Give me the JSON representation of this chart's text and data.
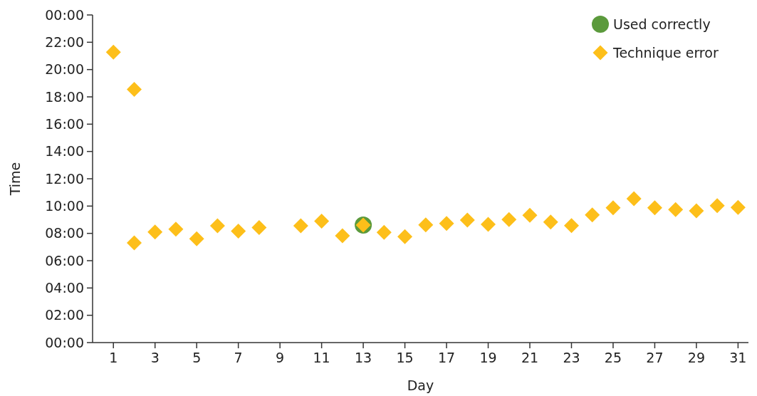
{
  "chart_data": {
    "type": "scatter",
    "xlabel": "Day",
    "ylabel": "Time",
    "xlim": [
      0,
      31.5
    ],
    "xticks": [
      1,
      3,
      5,
      7,
      9,
      11,
      13,
      15,
      17,
      19,
      21,
      23,
      25,
      27,
      29,
      31
    ],
    "ylim": [
      0,
      24
    ],
    "yticks": [
      {
        "value": 0,
        "label": "00:00"
      },
      {
        "value": 2,
        "label": "02:00"
      },
      {
        "value": 4,
        "label": "04:00"
      },
      {
        "value": 6,
        "label": "06:00"
      },
      {
        "value": 8,
        "label": "08:00"
      },
      {
        "value": 10,
        "label": "10:00"
      },
      {
        "value": 12,
        "label": "12:00"
      },
      {
        "value": 14,
        "label": "14:00"
      },
      {
        "value": 16,
        "label": "16:00"
      },
      {
        "value": 18,
        "label": "18:00"
      },
      {
        "value": 20,
        "label": "20:00"
      },
      {
        "value": 22,
        "label": "22:00"
      },
      {
        "value": 24,
        "label": "00:00"
      }
    ],
    "grid": false,
    "legend": "top right",
    "series": [
      {
        "name": "Used correctly",
        "color": "#5b9a3c",
        "marker": "circle",
        "x": [
          13
        ],
        "values": [
          8.61
        ]
      },
      {
        "name": "Technique error",
        "color": "#fdbf1a",
        "marker": "diamond",
        "x": [
          1,
          2,
          2,
          3,
          4,
          5,
          6,
          7,
          8,
          10,
          11,
          12,
          13,
          14,
          15,
          16,
          17,
          18,
          19,
          20,
          21,
          22,
          23,
          24,
          25,
          26,
          27,
          28,
          29,
          30,
          31
        ],
        "values": [
          21.27,
          18.55,
          7.3,
          8.1,
          8.31,
          7.6,
          8.56,
          8.17,
          8.43,
          8.56,
          8.9,
          7.82,
          8.61,
          8.07,
          7.76,
          8.62,
          8.73,
          8.97,
          8.66,
          9.01,
          9.32,
          8.83,
          8.57,
          9.35,
          9.88,
          10.54,
          9.88,
          9.74,
          9.65,
          10.03,
          9.9
        ]
      }
    ]
  }
}
